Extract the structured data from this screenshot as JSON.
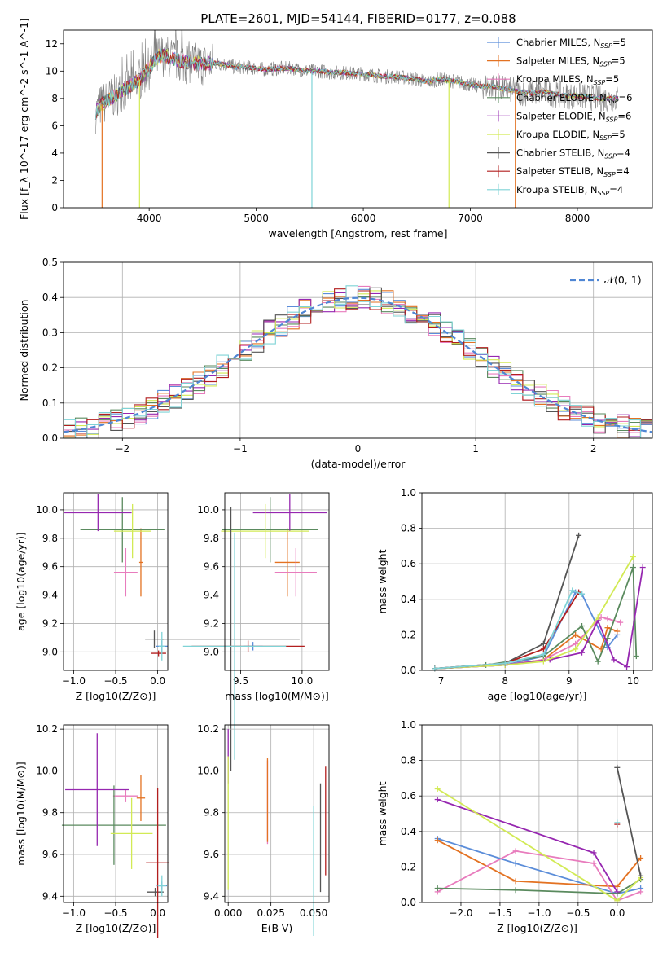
{
  "figure_title": "PLATE=2601, MJD=54144, FIBERID=0177, z=0.088",
  "colors": {
    "Chabrier MILES": "#5b8dd9",
    "Salpeter MILES": "#e37222",
    "Kroupa MILES": "#e87cbd",
    "Chabrier ELODIE": "#5a8a5e",
    "Salpeter ELODIE": "#9627b0",
    "Kroupa ELODIE": "#d2ea55",
    "Chabrier STELIB": "#555555",
    "Salpeter STELIB": "#b21e1e",
    "Kroupa STELIB": "#7fd3d6"
  },
  "chart_data": [
    {
      "id": "spectrum",
      "type": "line",
      "title": "PLATE=2601, MJD=54144, FIBERID=0177, z=0.088",
      "xlabel": "wavelength [Angstrom, rest frame]",
      "ylabel": "Flux [f_λ 10^-17 erg cm^-2 s^-1 A^-1]",
      "xlim": [
        3200,
        8700
      ],
      "ylim": [
        0,
        13
      ],
      "xticks": [
        4000,
        5000,
        6000,
        7000,
        8000
      ],
      "yticks": [
        0,
        2,
        4,
        6,
        8,
        10,
        12
      ],
      "legend_position": "right",
      "legend": [
        "Chabrier MILES, N_SSP=5",
        "Salpeter MILES, N_SSP=5",
        "Kroupa MILES, N_SSP=5",
        "Chabrier ELODIE, N_SSP=6",
        "Salpeter ELODIE, N_SSP=6",
        "Kroupa ELODIE, N_SSP=5",
        "Chabrier STELIB, N_SSP=4",
        "Salpeter STELIB, N_SSP=4",
        "Kroupa STELIB, N_SSP=4"
      ],
      "data": {
        "x": [
          3500,
          3550,
          3600,
          3700,
          3800,
          3900,
          4000,
          4100,
          4200,
          4300,
          4400,
          4500,
          4600,
          4700,
          4800,
          4900,
          5000,
          5100,
          5200,
          5300,
          5400,
          5500,
          5600,
          5700,
          5800,
          5900,
          6000,
          6100,
          6200,
          6300,
          6400,
          6500,
          6600,
          6700,
          6800,
          6900,
          7000,
          7100,
          7200,
          7300,
          7400,
          7500,
          7600,
          7700,
          7800,
          7900,
          8000,
          8100,
          8200,
          8300,
          8380
        ],
        "y": [
          7.0,
          7.5,
          7.8,
          8.3,
          8.8,
          9.3,
          10.2,
          11.2,
          11.0,
          10.7,
          10.6,
          10.5,
          10.6,
          10.5,
          10.3,
          10.3,
          10.2,
          10.1,
          10.2,
          10.2,
          10.1,
          10.0,
          10.0,
          9.9,
          9.9,
          9.8,
          9.8,
          9.7,
          9.6,
          9.6,
          9.5,
          9.4,
          9.2,
          9.4,
          9.3,
          9.2,
          9.0,
          8.9,
          8.9,
          8.7,
          8.6,
          8.4,
          8.4,
          8.5,
          8.3,
          8.2,
          8.2,
          8.1,
          8.0,
          8.0,
          8.0
        ]
      },
      "absorption_dips": [
        {
          "x": 3560,
          "y": 0.0,
          "series": "Salpeter MILES"
        },
        {
          "x": 3910,
          "y": 0.0,
          "series": "Kroupa ELODIE"
        },
        {
          "x": 5520,
          "y": 0.0,
          "series": "Kroupa STELIB"
        },
        {
          "x": 6800,
          "y": 0.0,
          "series": "Kroupa ELODIE"
        },
        {
          "x": 7420,
          "y": 0.0,
          "series": "Salpeter MILES"
        }
      ]
    },
    {
      "id": "residual-hist",
      "type": "histogram",
      "xlabel": "(data-model)/error",
      "ylabel": "Normed distribution",
      "xlim": [
        -2.5,
        2.5
      ],
      "ylim": [
        0,
        0.5
      ],
      "xticks": [
        -2,
        -1,
        0,
        1,
        2
      ],
      "yticks": [
        0.0,
        0.1,
        0.2,
        0.3,
        0.4,
        0.5
      ],
      "legend_position": "upper right",
      "legend": [
        "𝒩(0, 1)"
      ],
      "reference": "standard normal curve, dashed"
    },
    {
      "id": "age-vs-Z",
      "type": "errorbar",
      "xlabel": "Z [log10(Z/Z⊙)]",
      "ylabel": "age [log10(age/yr)]",
      "xlim": [
        -1.12,
        0.12
      ],
      "ylim": [
        8.87,
        10.12
      ],
      "xticks": [
        -1.0,
        -0.5,
        0.0
      ],
      "yticks": [
        9.0,
        9.2,
        9.4,
        9.6,
        9.8,
        10.0
      ],
      "points": [
        {
          "series": "Chabrier MILES",
          "x": 0.05,
          "y": 9.04,
          "xerr": 0.07,
          "yerr": 0.04
        },
        {
          "series": "Salpeter MILES",
          "x": -0.2,
          "y": 9.63,
          "xerr": 0.02,
          "yerr": 0.24
        },
        {
          "series": "Kroupa MILES",
          "x": -0.38,
          "y": 9.56,
          "xerr": 0.14,
          "yerr": 0.17
        },
        {
          "series": "Chabrier ELODIE",
          "x": -0.42,
          "y": 9.86,
          "xerr": 0.5,
          "yerr": 0.23
        },
        {
          "series": "Salpeter ELODIE",
          "x": -0.71,
          "y": 9.98,
          "xerr": 0.4,
          "yerr": 0.13
        },
        {
          "series": "Kroupa ELODIE",
          "x": -0.3,
          "y": 9.85,
          "xerr": 0.22,
          "yerr": 0.19
        },
        {
          "series": "Chabrier STELIB",
          "x": -0.04,
          "y": 9.09,
          "xerr": 0.11,
          "yerr": 0.06
        },
        {
          "series": "Salpeter STELIB",
          "x": 0.01,
          "y": 8.99,
          "xerr": 0.09,
          "yerr": 0.02
        },
        {
          "series": "Kroupa STELIB",
          "x": 0.05,
          "y": 9.04,
          "xerr": 0.04,
          "yerr": 0.1
        }
      ]
    },
    {
      "id": "age-vs-mass",
      "type": "errorbar",
      "xlabel": "mass [log10(M/M⊙)]",
      "ylabel": "",
      "xlim": [
        9.37,
        10.22
      ],
      "ylim": [
        8.87,
        10.12
      ],
      "xticks": [
        9.5,
        10.0
      ],
      "yticks": [
        9.0,
        9.2,
        9.4,
        9.6,
        9.8,
        10.0
      ],
      "points": [
        {
          "series": "Chabrier MILES",
          "x": 9.6,
          "y": 9.04,
          "xerr": 0.08,
          "yerr": 0.03
        },
        {
          "series": "Salpeter MILES",
          "x": 9.88,
          "y": 9.63,
          "xerr": 0.1,
          "yerr": 0.24
        },
        {
          "series": "Kroupa MILES",
          "x": 9.95,
          "y": 9.56,
          "xerr": 0.17,
          "yerr": 0.17
        },
        {
          "series": "Chabrier ELODIE",
          "x": 9.74,
          "y": 9.86,
          "xerr": 0.39,
          "yerr": 0.23
        },
        {
          "series": "Salpeter ELODIE",
          "x": 9.9,
          "y": 9.98,
          "xerr": 0.3,
          "yerr": 0.13
        },
        {
          "series": "Kroupa ELODIE",
          "x": 9.7,
          "y": 9.85,
          "xerr": 0.36,
          "yerr": 0.19
        },
        {
          "series": "Chabrier STELIB",
          "x": 9.42,
          "y": 9.09,
          "xerr": 0.56,
          "yerr": 0.93
        },
        {
          "series": "Salpeter STELIB",
          "x": 9.56,
          "y": 9.04,
          "xerr": 0.46,
          "yerr": 0.04
        },
        {
          "series": "Kroupa STELIB",
          "x": 9.45,
          "y": 9.04,
          "xerr": 0.42,
          "yerr": 0.8
        }
      ]
    },
    {
      "id": "weight-vs-age",
      "type": "line",
      "xlabel": "age [log10(age/yr)]",
      "ylabel": "mass weight",
      "xlim": [
        6.7,
        10.3
      ],
      "ylim": [
        0,
        1.0
      ],
      "xticks": [
        7,
        8,
        9,
        10
      ],
      "yticks": [
        0.0,
        0.2,
        0.4,
        0.6,
        0.8,
        1.0
      ],
      "series": [
        {
          "name": "Chabrier MILES",
          "x": [
            6.9,
            8.0,
            8.6,
            9.1,
            9.2,
            9.6,
            9.75
          ],
          "y": [
            0.01,
            0.03,
            0.08,
            0.44,
            0.43,
            0.13,
            0.2
          ]
        },
        {
          "name": "Salpeter MILES",
          "x": [
            6.9,
            8.0,
            8.6,
            9.1,
            9.5,
            9.6,
            9.75
          ],
          "y": [
            0.01,
            0.03,
            0.06,
            0.2,
            0.12,
            0.24,
            0.22
          ]
        },
        {
          "name": "Kroupa MILES",
          "x": [
            6.9,
            8.0,
            8.6,
            9.1,
            9.5,
            9.6,
            9.8
          ],
          "y": [
            0.01,
            0.03,
            0.06,
            0.15,
            0.3,
            0.29,
            0.27
          ]
        },
        {
          "name": "Chabrier ELODIE",
          "x": [
            6.9,
            7.7,
            8.6,
            9.2,
            9.45,
            9.6,
            10.0,
            10.05
          ],
          "y": [
            0.01,
            0.03,
            0.08,
            0.25,
            0.05,
            0.18,
            0.58,
            0.08
          ]
        },
        {
          "name": "Salpeter ELODIE",
          "x": [
            6.9,
            8.0,
            8.7,
            9.2,
            9.45,
            9.7,
            9.9,
            10.15
          ],
          "y": [
            0.01,
            0.03,
            0.06,
            0.1,
            0.28,
            0.06,
            0.02,
            0.58
          ]
        },
        {
          "name": "Kroupa ELODIE",
          "x": [
            6.9,
            8.0,
            8.6,
            9.1,
            9.45,
            10.0
          ],
          "y": [
            0.01,
            0.03,
            0.05,
            0.12,
            0.3,
            0.64
          ]
        },
        {
          "name": "Chabrier STELIB",
          "x": [
            6.9,
            8.0,
            8.6,
            9.15
          ],
          "y": [
            0.01,
            0.04,
            0.15,
            0.76
          ]
        },
        {
          "name": "Salpeter STELIB",
          "x": [
            6.9,
            8.0,
            8.6,
            9.15
          ],
          "y": [
            0.01,
            0.04,
            0.12,
            0.44
          ]
        },
        {
          "name": "Kroupa STELIB",
          "x": [
            6.9,
            8.0,
            8.6,
            9.05,
            9.2
          ],
          "y": [
            0.01,
            0.04,
            0.09,
            0.45,
            0.43
          ]
        }
      ]
    },
    {
      "id": "mass-vs-Z",
      "type": "errorbar",
      "xlabel": "Z [log10(Z/Z⊙)]",
      "ylabel": "mass [log10(M/M⊙)]",
      "xlim": [
        -1.12,
        0.12
      ],
      "ylim": [
        9.37,
        10.22
      ],
      "xticks": [
        -1.0,
        -0.5,
        0.0
      ],
      "yticks": [
        9.4,
        9.6,
        9.8,
        10.0,
        10.2
      ],
      "points": [
        {
          "series": "Chabrier MILES",
          "x": 0.05,
          "y": 9.45,
          "xerr": 0.06,
          "yerr": 0.02
        },
        {
          "series": "Salpeter MILES",
          "x": -0.2,
          "y": 9.87,
          "xerr": 0.05,
          "yerr": 0.11
        },
        {
          "series": "Kroupa MILES",
          "x": -0.38,
          "y": 9.88,
          "xerr": 0.15,
          "yerr": 0.03
        },
        {
          "series": "Chabrier ELODIE",
          "x": -0.52,
          "y": 9.74,
          "xerr": 0.62,
          "yerr": 0.19
        },
        {
          "series": "Salpeter ELODIE",
          "x": -0.72,
          "y": 9.91,
          "xerr": 0.38,
          "yerr": 0.27
        },
        {
          "series": "Kroupa ELODIE",
          "x": -0.31,
          "y": 9.7,
          "xerr": 0.25,
          "yerr": 0.17
        },
        {
          "series": "Chabrier STELIB",
          "x": -0.03,
          "y": 9.42,
          "xerr": 0.1,
          "yerr": 0.02
        },
        {
          "series": "Salpeter STELIB",
          "x": 0.0,
          "y": 9.56,
          "xerr": 0.14,
          "yerr": 0.36
        },
        {
          "series": "Kroupa STELIB",
          "x": 0.05,
          "y": 9.45,
          "xerr": 0.05,
          "yerr": 0.05
        }
      ]
    },
    {
      "id": "mass-vs-EBV",
      "type": "errorbar",
      "xlabel": "E(B-V)",
      "ylabel": "",
      "xlim": [
        -0.002,
        0.059
      ],
      "ylim": [
        9.37,
        10.22
      ],
      "xticks": [
        0.0,
        0.025,
        0.05
      ],
      "yticks": [
        9.4,
        9.6,
        9.8,
        10.0,
        10.2
      ],
      "points": [
        {
          "series": "Salpeter ELODIE",
          "x": 0.0,
          "y": 10.07,
          "xerr": 0,
          "yerr": 0.13
        },
        {
          "series": "Kroupa ELODIE",
          "x": 0.0,
          "y": 9.75,
          "xerr": 0,
          "yerr": 0.32
        },
        {
          "series": "Kroupa MILES",
          "x": 0.023,
          "y": 9.85,
          "xerr": 0,
          "yerr": 0.2
        },
        {
          "series": "Salpeter MILES",
          "x": 0.023,
          "y": 9.86,
          "xerr": 0,
          "yerr": 0.2
        },
        {
          "series": "Kroupa STELIB",
          "x": 0.05,
          "y": 9.52,
          "xerr": 0,
          "yerr": 0.31
        },
        {
          "series": "Chabrier STELIB",
          "x": 0.054,
          "y": 9.68,
          "xerr": 0,
          "yerr": 0.26
        },
        {
          "series": "Salpeter STELIB",
          "x": 0.057,
          "y": 9.76,
          "xerr": 0,
          "yerr": 0.26
        }
      ]
    },
    {
      "id": "weight-vs-Z",
      "type": "line",
      "xlabel": "Z [log10(Z/Z⊙)]",
      "ylabel": "mass weight",
      "xlim": [
        -2.5,
        0.45
      ],
      "ylim": [
        0,
        1.0
      ],
      "xticks": [
        -2.0,
        -1.5,
        -1.0,
        -0.5,
        0.0
      ],
      "yticks": [
        0.0,
        0.2,
        0.4,
        0.6,
        0.8,
        1.0
      ],
      "series": [
        {
          "name": "Chabrier MILES",
          "x": [
            -2.3,
            -1.3,
            0.0,
            0.3
          ],
          "y": [
            0.36,
            0.22,
            0.05,
            0.08
          ]
        },
        {
          "name": "Salpeter MILES",
          "x": [
            -2.3,
            -1.3,
            0.0,
            0.3
          ],
          "y": [
            0.35,
            0.12,
            0.09,
            0.25
          ]
        },
        {
          "name": "Kroupa MILES",
          "x": [
            -2.3,
            -1.3,
            -0.3,
            0.0,
            0.3
          ],
          "y": [
            0.06,
            0.29,
            0.22,
            0.01,
            0.06
          ]
        },
        {
          "name": "Chabrier ELODIE",
          "x": [
            -2.3,
            -1.3,
            0.0,
            0.3
          ],
          "y": [
            0.08,
            0.07,
            0.05,
            0.13
          ]
        },
        {
          "name": "Salpeter ELODIE",
          "x": [
            -2.3,
            -0.3,
            0.0
          ],
          "y": [
            0.58,
            0.28,
            0.06
          ]
        },
        {
          "name": "Kroupa ELODIE",
          "x": [
            -2.3,
            0.0,
            0.3
          ],
          "y": [
            0.64,
            0.01,
            0.14
          ]
        },
        {
          "name": "Chabrier STELIB",
          "x": [
            0.0,
            0.3
          ],
          "y": [
            0.76,
            0.15
          ]
        },
        {
          "name": "Salpeter STELIB",
          "x": [
            0.0
          ],
          "y": [
            0.44
          ]
        },
        {
          "name": "Kroupa STELIB",
          "x": [
            0.0
          ],
          "y": [
            0.45
          ]
        }
      ]
    }
  ]
}
